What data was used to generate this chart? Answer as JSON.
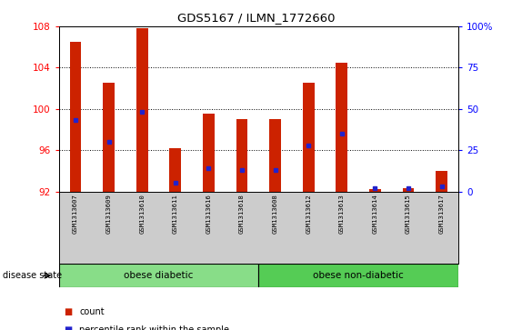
{
  "title": "GDS5167 / ILMN_1772660",
  "samples": [
    "GSM1313607",
    "GSM1313609",
    "GSM1313610",
    "GSM1313611",
    "GSM1313616",
    "GSM1313618",
    "GSM1313608",
    "GSM1313612",
    "GSM1313613",
    "GSM1313614",
    "GSM1313615",
    "GSM1313617"
  ],
  "count_values": [
    106.5,
    102.5,
    107.8,
    96.2,
    99.5,
    99.0,
    99.0,
    102.5,
    104.5,
    92.2,
    92.3,
    94.0
  ],
  "percentile_values": [
    43,
    30,
    48,
    5,
    14,
    13,
    13,
    28,
    35,
    2,
    2,
    3
  ],
  "baseline": 92,
  "ylim_left": [
    92,
    108
  ],
  "ylim_right": [
    0,
    100
  ],
  "yticks_left": [
    92,
    96,
    100,
    104,
    108
  ],
  "yticks_right": [
    0,
    25,
    50,
    75,
    100
  ],
  "bar_color": "#cc2200",
  "dot_color": "#2222cc",
  "group1_label": "obese diabetic",
  "group2_label": "obese non-diabetic",
  "group1_count": 6,
  "group2_count": 6,
  "group_bg_color1": "#88dd88",
  "group_bg_color2": "#55cc55",
  "label_bg_color": "#cccccc",
  "disease_state_label": "disease state",
  "legend_count_label": "count",
  "legend_pct_label": "percentile rank within the sample",
  "bar_width": 0.35
}
